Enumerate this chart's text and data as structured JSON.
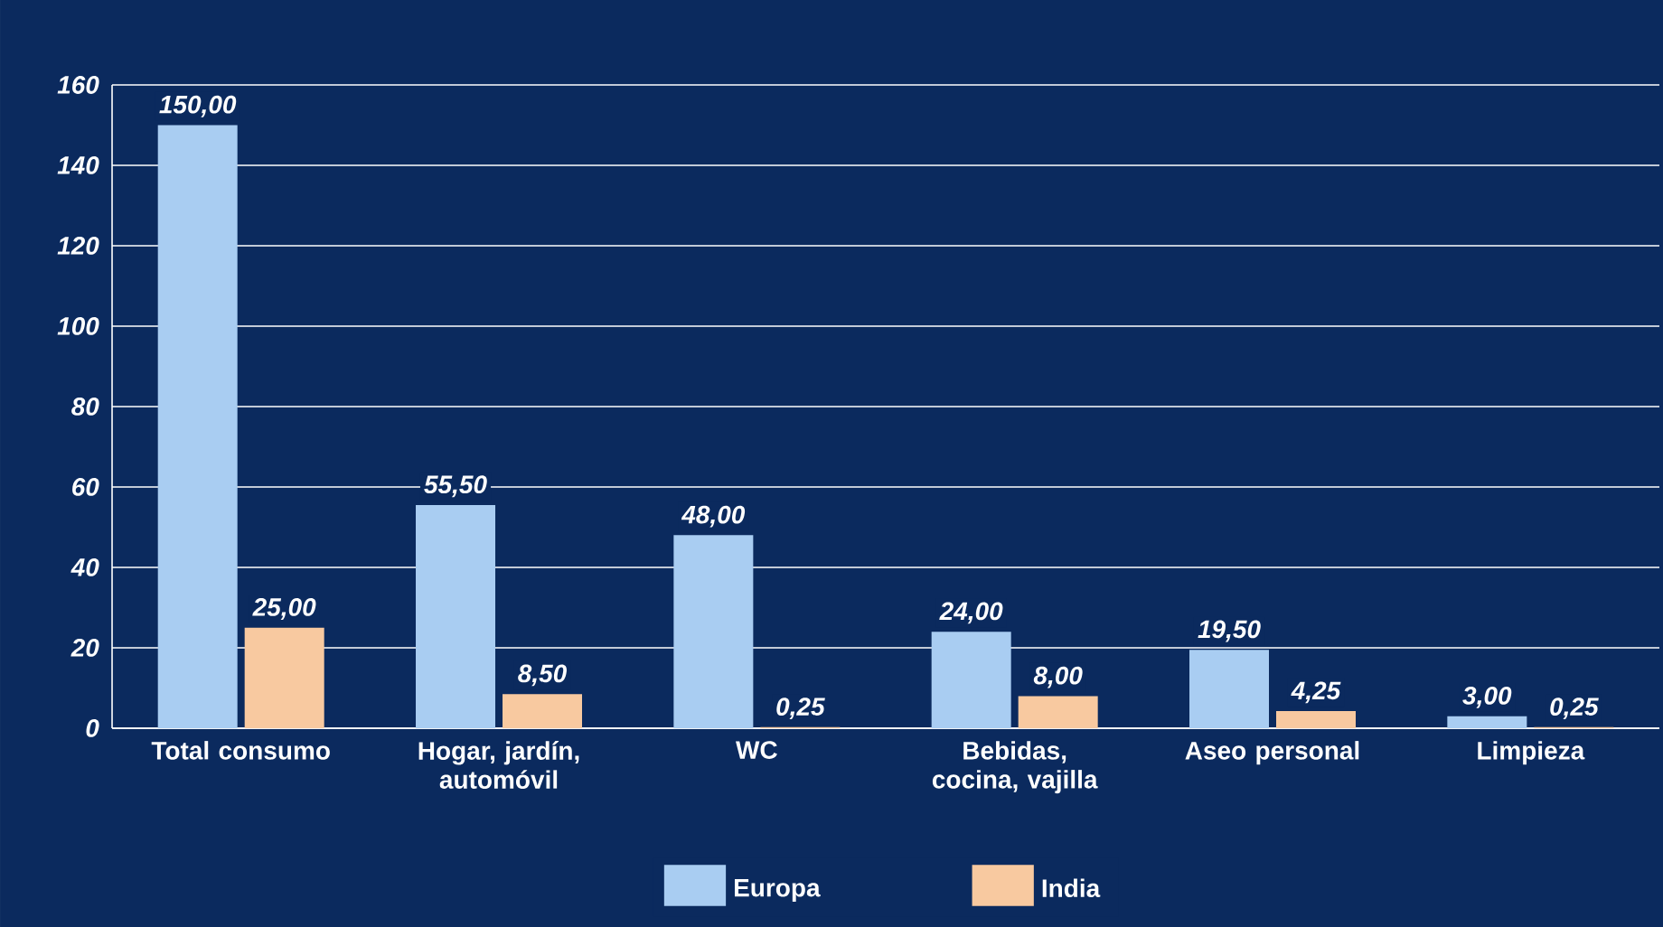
{
  "chart_data": {
    "type": "bar",
    "categories": [
      "Total consumo",
      "Hogar, jardín, automóvil",
      "WC",
      "Bebidas, cocina, vajilla",
      "Aseo personal",
      "Limpieza"
    ],
    "series": [
      {
        "name": "Europa",
        "color": "#a9cdf2",
        "values": [
          150,
          55.5,
          48,
          24,
          19.5,
          3
        ],
        "value_labels": [
          "150,00",
          "55,50",
          "48,00",
          "24,00",
          "19,50",
          "3,00"
        ]
      },
      {
        "name": "India",
        "color": "#f8c9a0",
        "values": [
          25,
          8.5,
          0.25,
          8,
          4.25,
          0.25
        ],
        "value_labels": [
          "25,00",
          "8,50",
          "0,25",
          "8,00",
          "4,25",
          "0,25"
        ]
      }
    ],
    "ylim": [
      0,
      160
    ],
    "yticks": [
      0,
      20,
      40,
      60,
      80,
      100,
      120,
      140,
      160
    ],
    "grid": "y",
    "legend": "bottom"
  }
}
